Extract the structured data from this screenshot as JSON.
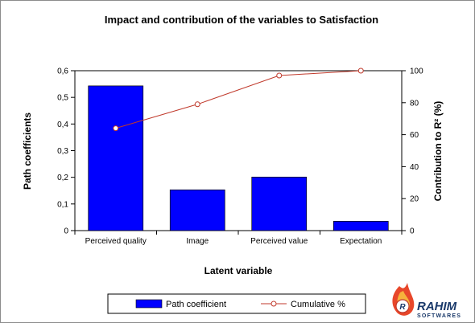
{
  "chart_data": {
    "type": "bar",
    "title": "Impact and contribution of the variables to Satisfaction",
    "xlabel": "Latent variable",
    "ylabel": "Path coefficients",
    "y2label": "Contribution to R² (%)",
    "categories": [
      "Perceived quality",
      "Image",
      "Perceived value",
      "Expectation"
    ],
    "ylim": [
      0,
      0.6
    ],
    "y2lim": [
      0,
      100
    ],
    "yticks": [
      "0",
      "0,1",
      "0,2",
      "0,3",
      "0,4",
      "0,5",
      "0,6"
    ],
    "y2ticks": [
      "0",
      "20",
      "40",
      "60",
      "80",
      "100"
    ],
    "grid": false,
    "legend_position": "bottom",
    "series": [
      {
        "name": "Path coefficient",
        "type": "bar",
        "axis": "left",
        "color": "#0000ff",
        "values": [
          0.543,
          0.153,
          0.201,
          0.035
        ]
      },
      {
        "name": "Cumulative %",
        "type": "line",
        "axis": "right",
        "color": "#c0392b",
        "values": [
          64,
          79,
          97,
          100
        ]
      }
    ]
  },
  "watermark": {
    "name": "RAHIM",
    "sub": "SOFTWARES"
  }
}
